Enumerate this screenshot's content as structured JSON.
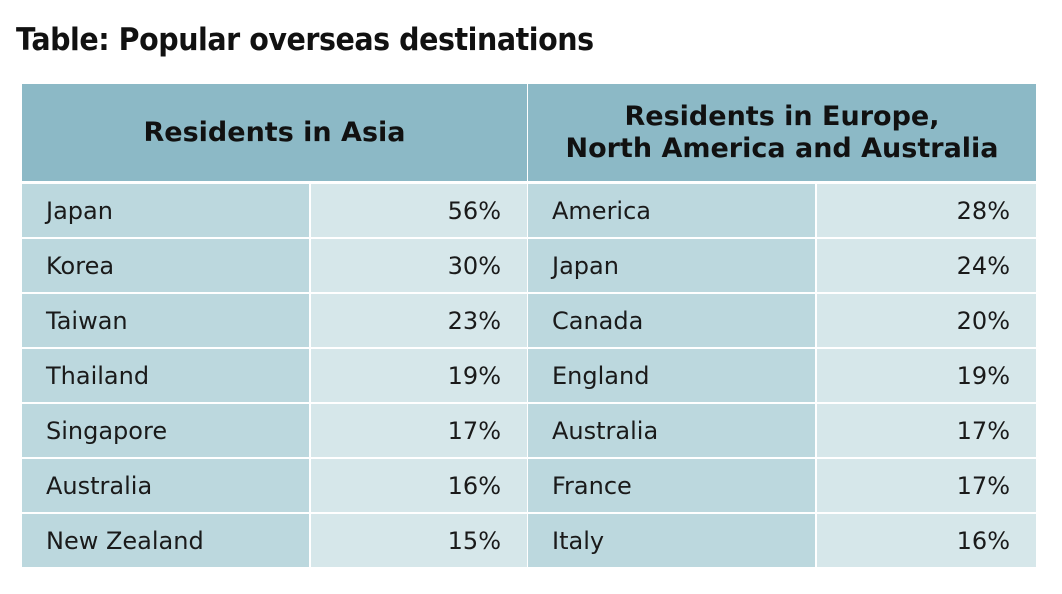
{
  "title": "Table: Popular overseas destinations",
  "colors": {
    "header_bg": "#8cb9c6",
    "name_cell_bg": "#bcd8de",
    "value_cell_bg": "#d6e7ea"
  },
  "chart_data": {
    "type": "table",
    "title": "Table: Popular overseas destinations",
    "groups": [
      {
        "header": "Residents in Asia",
        "rows": [
          {
            "name": "Japan",
            "value": "56%"
          },
          {
            "name": "Korea",
            "value": "30%"
          },
          {
            "name": "Taiwan",
            "value": "23%"
          },
          {
            "name": "Thailand",
            "value": "19%"
          },
          {
            "name": "Singapore",
            "value": "17%"
          },
          {
            "name": "Australia",
            "value": "16%"
          },
          {
            "name": "New Zealand",
            "value": "15%"
          }
        ]
      },
      {
        "header": "Residents in Europe,\nNorth America and Australia",
        "rows": [
          {
            "name": "America",
            "value": "28%"
          },
          {
            "name": "Japan",
            "value": "24%"
          },
          {
            "name": "Canada",
            "value": "20%"
          },
          {
            "name": "England",
            "value": "19%"
          },
          {
            "name": "Australia",
            "value": "17%"
          },
          {
            "name": "France",
            "value": "17%"
          },
          {
            "name": "Italy",
            "value": "16%"
          }
        ]
      }
    ]
  }
}
